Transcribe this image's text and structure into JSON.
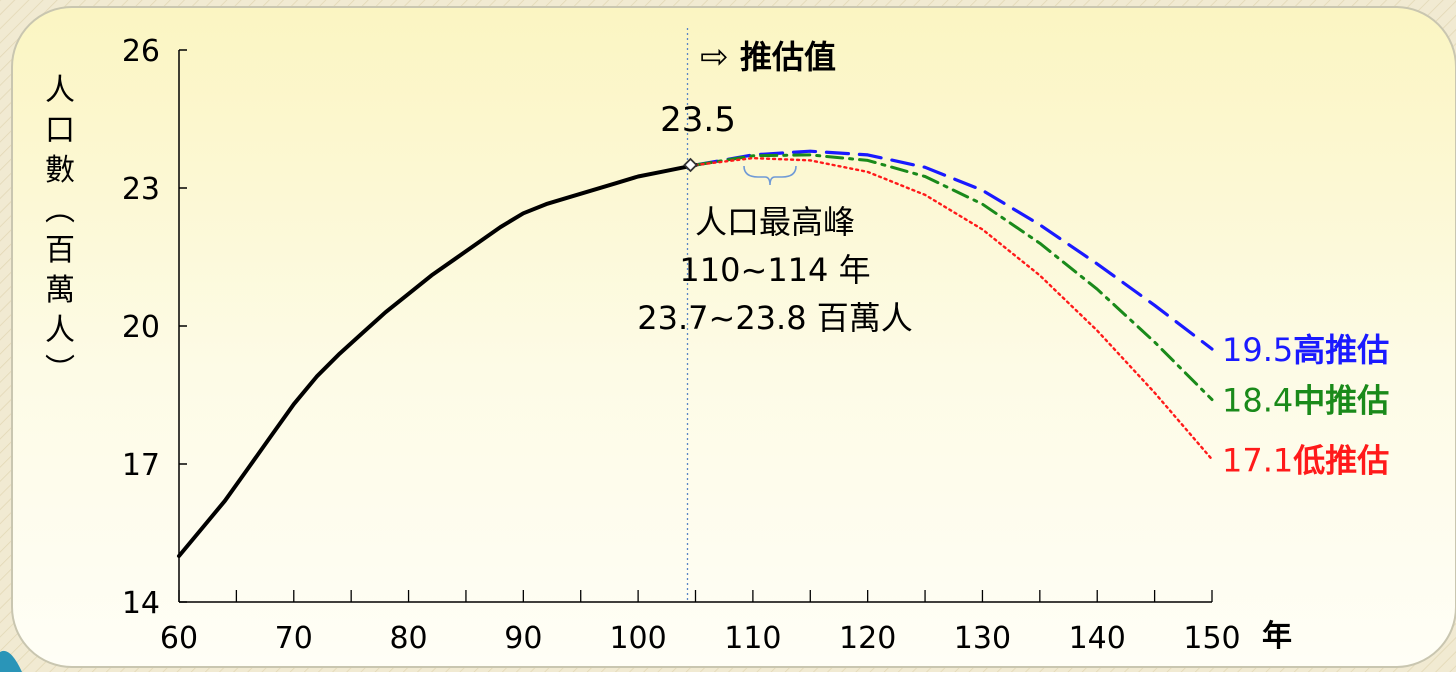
{
  "chart_data": {
    "type": "line",
    "title": "",
    "forecast_marker": "推估值",
    "xlabel": "年",
    "ylabel": "人口數（百萬人）",
    "xlim": [
      60,
      150
    ],
    "ylim": [
      14,
      26
    ],
    "x_ticks": [
      "60",
      "70",
      "80",
      "90",
      "100",
      "110",
      "120",
      "130",
      "140",
      "150"
    ],
    "y_ticks": [
      "14",
      "17",
      "20",
      "23",
      "26"
    ],
    "grid": false,
    "forecast_start_year": 105,
    "marker_value_label": "23.5",
    "peak_annotation": [
      "人口最高峰",
      "110~114 年",
      "23.7~23.8 百萬人"
    ],
    "series": [
      {
        "name": "",
        "color": "#000000",
        "style": "solid",
        "x": [
          60,
          62,
          64,
          66,
          68,
          70,
          72,
          74,
          76,
          78,
          80,
          82,
          84,
          86,
          88,
          90,
          92,
          94,
          96,
          98,
          100,
          102,
          104,
          105
        ],
        "y": [
          15.0,
          15.6,
          16.2,
          16.9,
          17.6,
          18.3,
          18.9,
          19.4,
          19.85,
          20.3,
          20.7,
          21.1,
          21.45,
          21.8,
          22.15,
          22.45,
          22.65,
          22.8,
          22.95,
          23.1,
          23.25,
          23.35,
          23.45,
          23.5
        ]
      },
      {
        "name": "高推估",
        "end_label": "19.5",
        "color": "#1a1aff",
        "style": "dashed",
        "x": [
          105,
          110,
          115,
          120,
          125,
          130,
          135,
          140,
          145,
          150
        ],
        "y": [
          23.5,
          23.72,
          23.8,
          23.72,
          23.45,
          22.95,
          22.2,
          21.35,
          20.45,
          19.5
        ]
      },
      {
        "name": "中推估",
        "end_label": "18.4",
        "color": "#1a8a1a",
        "style": "dashdot",
        "x": [
          105,
          110,
          115,
          120,
          125,
          130,
          135,
          140,
          145,
          150
        ],
        "y": [
          23.5,
          23.7,
          23.72,
          23.6,
          23.25,
          22.65,
          21.8,
          20.8,
          19.65,
          18.4
        ]
      },
      {
        "name": "低推估",
        "end_label": "17.1",
        "color": "#ff1a1a",
        "style": "dotted",
        "x": [
          105,
          110,
          115,
          120,
          125,
          130,
          135,
          140,
          145,
          150
        ],
        "y": [
          23.5,
          23.65,
          23.6,
          23.35,
          22.85,
          22.1,
          21.1,
          19.9,
          18.55,
          17.1
        ]
      }
    ]
  }
}
